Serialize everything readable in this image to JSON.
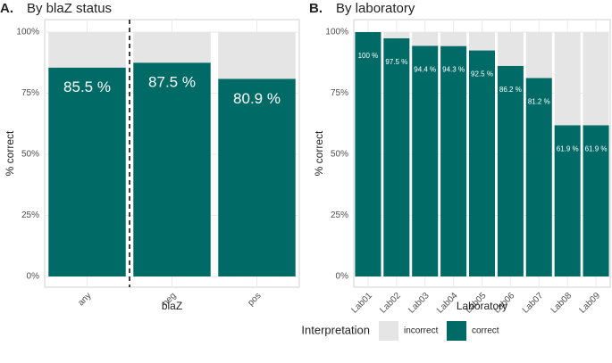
{
  "chart_data": [
    {
      "type": "bar",
      "panel_label": "A.",
      "title": "By blaZ status",
      "xlabel": "blaZ",
      "ylabel": "% correct",
      "categories": [
        "any",
        "neg",
        "pos"
      ],
      "series": [
        {
          "name": "incorrect",
          "color": "#e5e5e5",
          "values": [
            14.5,
            12.5,
            19.1
          ]
        },
        {
          "name": "correct",
          "color": "#006a66",
          "values": [
            85.5,
            87.5,
            80.9
          ],
          "value_labels": [
            "85.5 %",
            "87.5 %",
            "80.9 %"
          ]
        }
      ],
      "ylim": [
        0,
        100
      ],
      "yticks": [
        {
          "value": 0,
          "label": "0%"
        },
        {
          "value": 25,
          "label": "25%"
        },
        {
          "value": 50,
          "label": "50%"
        },
        {
          "value": 75,
          "label": "75%"
        },
        {
          "value": 100,
          "label": "100%"
        }
      ],
      "grid": true
    },
    {
      "type": "bar",
      "panel_label": "B.",
      "title": "By laboratory",
      "xlabel": "Laboratory",
      "ylabel": "% correct",
      "categories": [
        "Lab01",
        "Lab02",
        "Lab03",
        "Lab04",
        "Lab05",
        "Lab06",
        "Lab07",
        "Lab08",
        "Lab09"
      ],
      "series": [
        {
          "name": "incorrect",
          "color": "#e5e5e5",
          "values": [
            0,
            2.5,
            5.6,
            5.7,
            7.5,
            13.8,
            18.8,
            38.1,
            38.1
          ]
        },
        {
          "name": "correct",
          "color": "#006a66",
          "values": [
            100,
            97.5,
            94.4,
            94.3,
            92.5,
            86.2,
            81.2,
            61.9,
            61.9
          ],
          "value_labels": [
            "100 %",
            "97.5 %",
            "94.4 %",
            "94.3 %",
            "92.5 %",
            "86.2 %",
            "81.2 %",
            "61.9 %",
            "61.9 %"
          ]
        }
      ],
      "ylim": [
        0,
        100
      ],
      "yticks": [
        {
          "value": 0,
          "label": "0%"
        },
        {
          "value": 25,
          "label": "25%"
        },
        {
          "value": 50,
          "label": "50%"
        },
        {
          "value": 75,
          "label": "75%"
        },
        {
          "value": 100,
          "label": "100%"
        }
      ],
      "grid": true
    }
  ],
  "legend": {
    "title": "Interpretation"
  }
}
